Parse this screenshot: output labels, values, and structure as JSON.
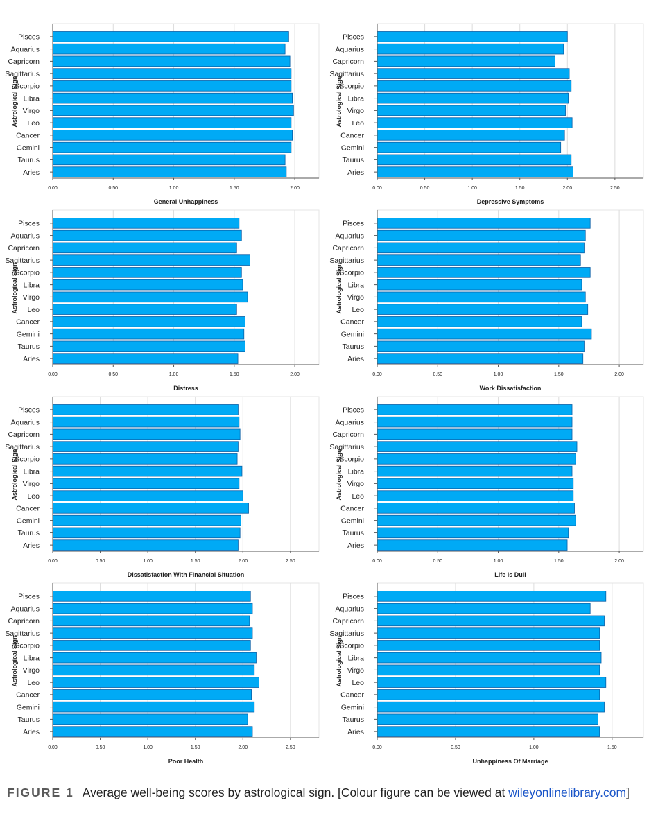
{
  "chart_data": [
    {
      "type": "bar",
      "orientation": "horizontal",
      "ylabel": "Astrological Sign",
      "xlabel": "General Unhappiness",
      "categories": [
        "Pisces",
        "Aquarius",
        "Capricorn",
        "Sagittarius",
        "Scorpio",
        "Libra",
        "Virgo",
        "Leo",
        "Cancer",
        "Gemini",
        "Taurus",
        "Aries"
      ],
      "values": [
        1.95,
        1.92,
        1.96,
        1.97,
        1.97,
        1.98,
        1.99,
        1.97,
        1.98,
        1.97,
        1.92,
        1.93
      ],
      "xlim": [
        0,
        2.2
      ],
      "ticks": [
        0,
        0.5,
        1.0,
        1.5,
        2.0
      ],
      "tick_labels": [
        "0.00",
        "0.50",
        "1.00",
        "1.50",
        "2.00"
      ],
      "grid": true
    },
    {
      "type": "bar",
      "orientation": "horizontal",
      "ylabel": "Astrological Sign",
      "xlabel": "Depressive Symptoms",
      "categories": [
        "Pisces",
        "Aquarius",
        "Capricorn",
        "Sagittarius",
        "Scorpio",
        "Libra",
        "Virgo",
        "Leo",
        "Cancer",
        "Gemini",
        "Taurus",
        "Aries"
      ],
      "values": [
        2.0,
        1.96,
        1.87,
        2.02,
        2.04,
        2.01,
        1.98,
        2.05,
        1.97,
        1.93,
        2.04,
        2.06
      ],
      "xlim": [
        0,
        2.8
      ],
      "ticks": [
        0,
        0.5,
        1.0,
        1.5,
        2.0,
        2.5
      ],
      "tick_labels": [
        "0.00",
        "0.50",
        "1.00",
        "1.50",
        "2.00",
        "2.50"
      ],
      "grid": true
    },
    {
      "type": "bar",
      "orientation": "horizontal",
      "ylabel": "Astrological Sign",
      "xlabel": "Distress",
      "categories": [
        "Pisces",
        "Aquarius",
        "Capricorn",
        "Sagittarius",
        "Scorpio",
        "Libra",
        "Virgo",
        "Leo",
        "Cancer",
        "Gemini",
        "Taurus",
        "Aries"
      ],
      "values": [
        1.54,
        1.56,
        1.52,
        1.63,
        1.56,
        1.57,
        1.61,
        1.52,
        1.59,
        1.58,
        1.59,
        1.53
      ],
      "xlim": [
        0,
        2.2
      ],
      "ticks": [
        0,
        0.5,
        1.0,
        1.5,
        2.0
      ],
      "tick_labels": [
        "0.00",
        "0.50",
        "1.00",
        "1.50",
        "2.00"
      ],
      "grid": true
    },
    {
      "type": "bar",
      "orientation": "horizontal",
      "ylabel": "Astrological Sign",
      "xlabel": "Work Dissatisfaction",
      "categories": [
        "Pisces",
        "Aquarius",
        "Capricorn",
        "Sagittarius",
        "Scorpio",
        "Libra",
        "Virgo",
        "Leo",
        "Cancer",
        "Gemini",
        "Taurus",
        "Aries"
      ],
      "values": [
        1.76,
        1.72,
        1.71,
        1.68,
        1.76,
        1.69,
        1.72,
        1.74,
        1.69,
        1.77,
        1.71,
        1.7
      ],
      "xlim": [
        0,
        2.2
      ],
      "ticks": [
        0,
        0.5,
        1.0,
        1.5,
        2.0
      ],
      "tick_labels": [
        "0.00",
        "0.50",
        "1.00",
        "1.50",
        "2.00"
      ],
      "grid": true
    },
    {
      "type": "bar",
      "orientation": "horizontal",
      "ylabel": "Astrological Sign",
      "xlabel": "Dissatisfaction With Financial Situation",
      "categories": [
        "Pisces",
        "Aquarius",
        "Capricorn",
        "Sagittarius",
        "Scorpio",
        "Libra",
        "Virgo",
        "Leo",
        "Cancer",
        "Gemini",
        "Taurus",
        "Aries"
      ],
      "values": [
        1.95,
        1.96,
        1.97,
        1.95,
        1.94,
        1.99,
        1.96,
        2.0,
        2.06,
        1.98,
        1.97,
        1.95
      ],
      "xlim": [
        0,
        2.8
      ],
      "ticks": [
        0,
        0.5,
        1.0,
        1.5,
        2.0,
        2.5
      ],
      "tick_labels": [
        "0.00",
        "0.50",
        "1.00",
        "1.50",
        "2.00",
        "2.50"
      ],
      "grid": true
    },
    {
      "type": "bar",
      "orientation": "horizontal",
      "ylabel": "Astrological Sign",
      "xlabel": "Life Is Dull",
      "categories": [
        "Pisces",
        "Aquarius",
        "Capricorn",
        "Sagittarius",
        "Scorpio",
        "Libra",
        "Virgo",
        "Leo",
        "Cancer",
        "Gemini",
        "Taurus",
        "Aries"
      ],
      "values": [
        1.61,
        1.61,
        1.61,
        1.65,
        1.64,
        1.61,
        1.62,
        1.62,
        1.63,
        1.64,
        1.58,
        1.57
      ],
      "xlim": [
        0,
        2.2
      ],
      "ticks": [
        0,
        0.5,
        1.0,
        1.5,
        2.0
      ],
      "tick_labels": [
        "0.00",
        "0.50",
        "1.00",
        "1.50",
        "2.00"
      ],
      "grid": true
    },
    {
      "type": "bar",
      "orientation": "horizontal",
      "ylabel": "Astrological Sign",
      "xlabel": "Poor Health",
      "categories": [
        "Pisces",
        "Aquarius",
        "Capricorn",
        "Sagittarius",
        "Scorpio",
        "Libra",
        "Virgo",
        "Leo",
        "Cancer",
        "Gemini",
        "Taurus",
        "Aries"
      ],
      "values": [
        2.08,
        2.1,
        2.07,
        2.1,
        2.08,
        2.14,
        2.12,
        2.17,
        2.09,
        2.12,
        2.05,
        2.1
      ],
      "xlim": [
        0,
        2.8
      ],
      "ticks": [
        0,
        0.5,
        1.0,
        1.5,
        2.0,
        2.5
      ],
      "tick_labels": [
        "0.00",
        "0.50",
        "1.00",
        "1.50",
        "2.00",
        "2.50"
      ],
      "grid": true
    },
    {
      "type": "bar",
      "orientation": "horizontal",
      "ylabel": "Astrological Sign",
      "xlabel": "Unhappiness Of Marriage",
      "categories": [
        "Pisces",
        "Aquarius",
        "Capricorn",
        "Sagittarius",
        "Scorpio",
        "Libra",
        "Virgo",
        "Leo",
        "Cancer",
        "Gemini",
        "Taurus",
        "Aries"
      ],
      "values": [
        1.46,
        1.36,
        1.45,
        1.42,
        1.42,
        1.43,
        1.42,
        1.46,
        1.42,
        1.45,
        1.41,
        1.42
      ],
      "xlim": [
        0,
        1.7
      ],
      "ticks": [
        0,
        0.5,
        1.0,
        1.5
      ],
      "tick_labels": [
        "0.00",
        "0.50",
        "1.00",
        "1.50"
      ],
      "grid": true
    }
  ],
  "colors": {
    "bar_fill": "#00aaf5",
    "bar_stroke": "#0a5fa6",
    "grid": "#dcdcdc",
    "axis": "#555555",
    "text": "#222222"
  },
  "caption": {
    "figure_label": "FIGURE 1",
    "text": "Average well-being scores by astrological sign. [Colour figure can be viewed at ",
    "link": "wileyonlinelibrary.com",
    "end": "]"
  }
}
